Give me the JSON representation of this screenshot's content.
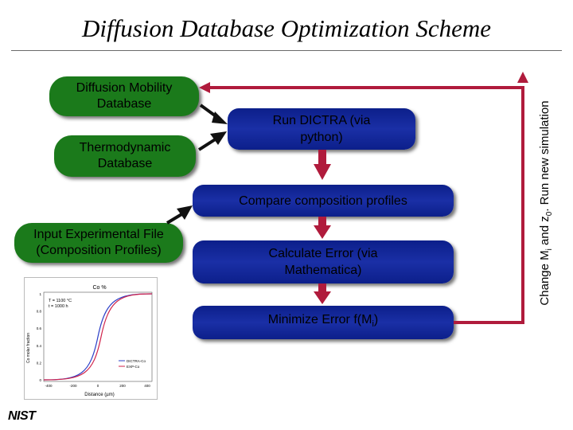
{
  "title": "Diffusion Database Optimization Scheme",
  "boxes": {
    "mobility": "Diffusion Mobility Database",
    "thermo": "Thermodynamic Database",
    "experimental": "Input Experimental File (Composition Profiles)",
    "run_dictra": "Run DICTRA (via python)",
    "compare": "Compare composition profiles",
    "calc_error": "Calculate Error (via Mathematica)",
    "minimize_pre": "Minimize Error f(M",
    "minimize_sub": "i",
    "minimize_post": ")"
  },
  "side_label": {
    "pre": "Change M",
    "sub_i": "i",
    "mid": " and z",
    "sub_0": "0",
    "post": ". Run new simulation"
  },
  "plot": {
    "title": "Co %",
    "temp": "T = 1100 °C",
    "time": "t = 1000 h",
    "xlabel": "Distance (µm)",
    "ylabel": "Co molar fraction",
    "legend": [
      "DICTRA-Co",
      "EXP-Co"
    ],
    "xticks": [
      "-400",
      "-200",
      "0",
      "200",
      "400"
    ],
    "yticks": [
      "1",
      "0.8",
      "0.6",
      "0.4",
      "0.2",
      "0"
    ]
  },
  "logo": "NIST",
  "colors": {
    "green_box": "#1b7a1b",
    "blue_box": "#0c1f8a",
    "arrow_red": "#b01b3c",
    "arrow_black": "#111111"
  }
}
